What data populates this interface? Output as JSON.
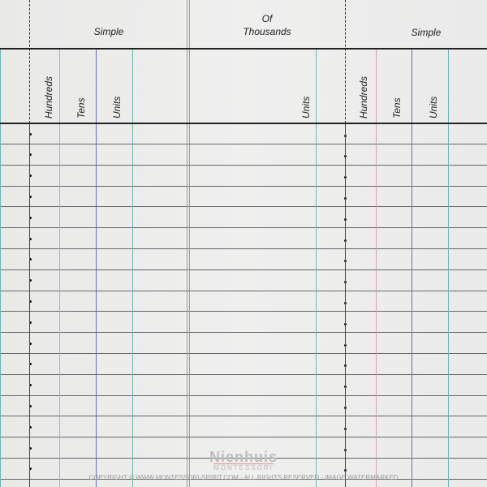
{
  "headers": {
    "group_left": "Simple",
    "group_middle_line1": "Of",
    "group_middle_line2": "Thousands",
    "group_right": "Simple"
  },
  "columns_left": [
    "Hundreds",
    "Tens",
    "Units"
  ],
  "column_middle": "Units",
  "columns_right": [
    "Hundreds",
    "Tens",
    "Units"
  ],
  "colors": {
    "hundreds": "#d9a0b0",
    "tens": "#6a6fb8",
    "units": "#6ab8b8",
    "divider": "#999999"
  },
  "watermark": {
    "logo": "Nienhuis",
    "logo_sub": "MONTESSORI",
    "copyright": "COPYRIGHT © WWW.MONTESSORI-SPIRIT.COM - ALL RIGHTS RESERVED - IMAGE WATERMARKED"
  }
}
